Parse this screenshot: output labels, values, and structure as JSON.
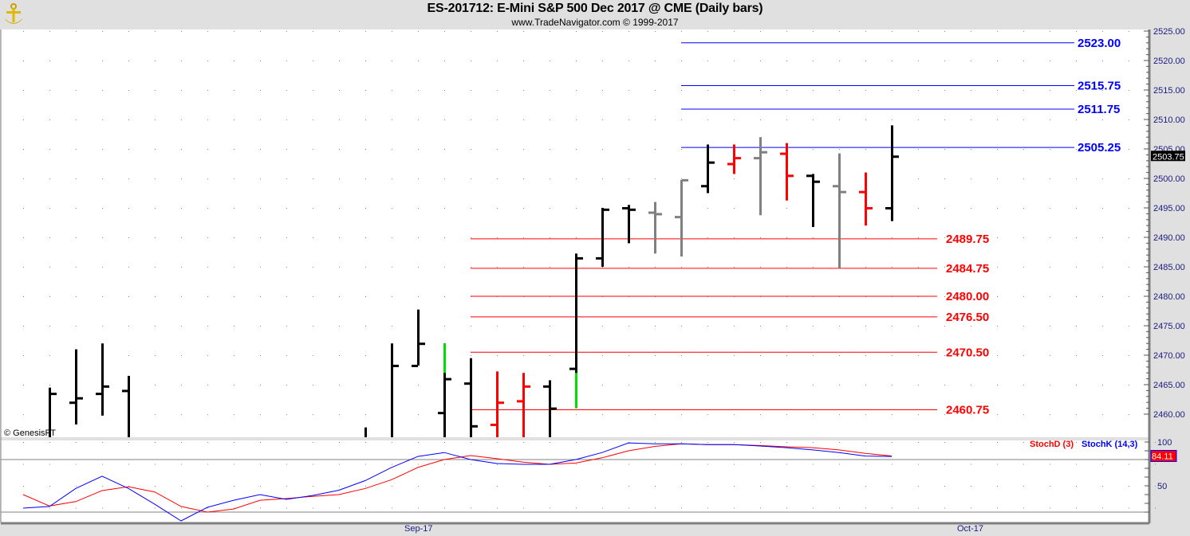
{
  "header": {
    "title": "ES-201712:  E-Mini S&P 500 Dec 2017 @ CME  (Daily bars)",
    "subtitle": "www.TradeNavigator.com © 1999-2017",
    "logo_icon": "gold-anchor-logo"
  },
  "watermark": "© GenesisFT",
  "chart_data": [
    {
      "type": "ohlc",
      "price_axis": {
        "min": 2460,
        "max": 2525,
        "tick_step": 5,
        "minor_step": 1,
        "tick_labels": [
          "2525.00",
          "2520.00",
          "2515.00",
          "2510.00",
          "2505.00",
          "2500.00",
          "2495.00",
          "2490.00",
          "2485.00",
          "2480.00",
          "2475.00",
          "2470.00",
          "2465.00",
          "2460.00"
        ]
      },
      "last_price": "2503.75",
      "x_labels": [
        {
          "bar": 15,
          "label": "Sep-17"
        },
        {
          "bar": 36,
          "label": "Oct-17"
        }
      ],
      "grid": "dotted",
      "colors": {
        "black": "#000000",
        "red": "#ff0000",
        "gray": "#808080",
        "green": "#00e000"
      },
      "bars": [
        {
          "i": 1,
          "o": null,
          "h": 2464.5,
          "l": null,
          "c": 2463.5,
          "color": "black"
        },
        {
          "i": 2,
          "o": 2462,
          "h": 2471,
          "l": 2458.25,
          "c": 2462.75,
          "color": "black"
        },
        {
          "i": 3,
          "o": 2463.5,
          "h": 2472,
          "l": 2459.75,
          "c": 2464.75,
          "color": "black"
        },
        {
          "i": 4,
          "o": 2464,
          "h": 2466.5,
          "l": null,
          "c": null,
          "color": "black"
        },
        {
          "i": 13,
          "o": null,
          "h": 2457.75,
          "l": null,
          "c": null,
          "color": "black"
        },
        {
          "i": 14,
          "o": null,
          "h": 2472,
          "l": null,
          "c": 2468.25,
          "color": "black"
        },
        {
          "i": 15,
          "o": 2468.25,
          "h": 2477.75,
          "l": 2468.25,
          "c": 2472,
          "color": "black"
        },
        {
          "i": 16,
          "o": 2460.25,
          "h": 2472,
          "l": null,
          "c": 2466,
          "color": "black",
          "green_range": [
            2467,
            2472
          ]
        },
        {
          "i": 17,
          "o": 2465.25,
          "h": 2469.5,
          "l": null,
          "c": 2458,
          "color": "black"
        },
        {
          "i": 18,
          "o": 2458.25,
          "h": 2467.25,
          "l": null,
          "c": 2462,
          "color": "red"
        },
        {
          "i": 19,
          "o": 2462.25,
          "h": 2467,
          "l": null,
          "c": 2464.75,
          "color": "red"
        },
        {
          "i": 20,
          "o": 2464.75,
          "h": 2465.75,
          "l": null,
          "c": 2461,
          "color": "black"
        },
        {
          "i": 21,
          "o": 2467.75,
          "h": 2487.25,
          "l": 2461,
          "c": 2486.5,
          "color": "black",
          "green_range": [
            2461,
            2467
          ]
        },
        {
          "i": 22,
          "o": 2486.5,
          "h": 2495,
          "l": 2485,
          "c": 2494.75,
          "color": "black"
        },
        {
          "i": 23,
          "o": 2495,
          "h": 2495.5,
          "l": 2489,
          "c": 2494.75,
          "color": "black"
        },
        {
          "i": 24,
          "o": 2494.25,
          "h": 2496,
          "l": 2487.25,
          "c": 2494,
          "color": "gray"
        },
        {
          "i": 25,
          "o": 2493.5,
          "h": 2499.75,
          "l": 2486.75,
          "c": 2499.75,
          "color": "gray"
        },
        {
          "i": 26,
          "o": 2498.75,
          "h": 2505.75,
          "l": 2497.5,
          "c": 2502.75,
          "color": "black"
        },
        {
          "i": 27,
          "o": 2502.5,
          "h": 2505.75,
          "l": 2500.75,
          "c": 2503.5,
          "color": "red"
        },
        {
          "i": 28,
          "o": 2503.5,
          "h": 2507,
          "l": 2493.75,
          "c": 2504.5,
          "color": "gray"
        },
        {
          "i": 29,
          "o": 2504.25,
          "h": 2506,
          "l": 2496.25,
          "c": 2500.5,
          "color": "red"
        },
        {
          "i": 30,
          "o": 2500.5,
          "h": 2500.75,
          "l": 2491.75,
          "c": 2499.5,
          "color": "black"
        },
        {
          "i": 31,
          "o": 2498.75,
          "h": 2504.25,
          "l": 2484.75,
          "c": 2497.75,
          "color": "gray"
        },
        {
          "i": 32,
          "o": 2497.75,
          "h": 2501,
          "l": 2492,
          "c": 2495,
          "color": "red"
        },
        {
          "i": 33,
          "o": 2495,
          "h": 2509,
          "l": 2492.75,
          "c": 2503.75,
          "color": "black"
        }
      ],
      "levels": [
        {
          "value": 2523.0,
          "label": "2523.00",
          "color": "#0000ff",
          "from_bar": 25
        },
        {
          "value": 2515.75,
          "label": "2515.75",
          "color": "#0000ff",
          "from_bar": 25
        },
        {
          "value": 2511.75,
          "label": "2511.75",
          "color": "#0000ff",
          "from_bar": 25
        },
        {
          "value": 2505.25,
          "label": "2505.25",
          "color": "#0000ff",
          "from_bar": 25
        },
        {
          "value": 2489.75,
          "label": "2489.75",
          "color": "#ff0000",
          "from_bar": 17
        },
        {
          "value": 2484.75,
          "label": "2484.75",
          "color": "#ff0000",
          "from_bar": 17
        },
        {
          "value": 2480.0,
          "label": "2480.00",
          "color": "#ff0000",
          "from_bar": 17
        },
        {
          "value": 2476.5,
          "label": "2476.50",
          "color": "#ff0000",
          "from_bar": 17
        },
        {
          "value": 2470.5,
          "label": "2470.50",
          "color": "#ff0000",
          "from_bar": 17
        },
        {
          "value": 2460.75,
          "label": "2460.75",
          "color": "#ff0000",
          "from_bar": 17
        }
      ]
    },
    {
      "type": "line",
      "y_axis": {
        "min": 0,
        "max": 100,
        "tick_labels": [
          "100",
          "50"
        ],
        "reference_lines": [
          80,
          20
        ]
      },
      "last_value_label": "84.11",
      "series": [
        {
          "name": "StochD (3)",
          "color": "#ff0000",
          "values": [
            40,
            27,
            32,
            44.5,
            49,
            43,
            26.5,
            20,
            23.5,
            33.5,
            35.5,
            38,
            40,
            47,
            57,
            71,
            80,
            84.5,
            81,
            77,
            74.5,
            76,
            82,
            90,
            95,
            98,
            97,
            97,
            96,
            94.5,
            93.5,
            91,
            87,
            84.11
          ]
        },
        {
          "name": "StochK (14,3)",
          "color": "#0000ff",
          "values": [
            24.5,
            26.5,
            47,
            61,
            47,
            29,
            10,
            25.5,
            33.5,
            40,
            34.5,
            39,
            45,
            56,
            71,
            83.5,
            88,
            80,
            75.5,
            74.5,
            74.5,
            80,
            88,
            99,
            98,
            98,
            97,
            97,
            95.5,
            93.5,
            91,
            88,
            84,
            83.5
          ]
        }
      ]
    }
  ]
}
